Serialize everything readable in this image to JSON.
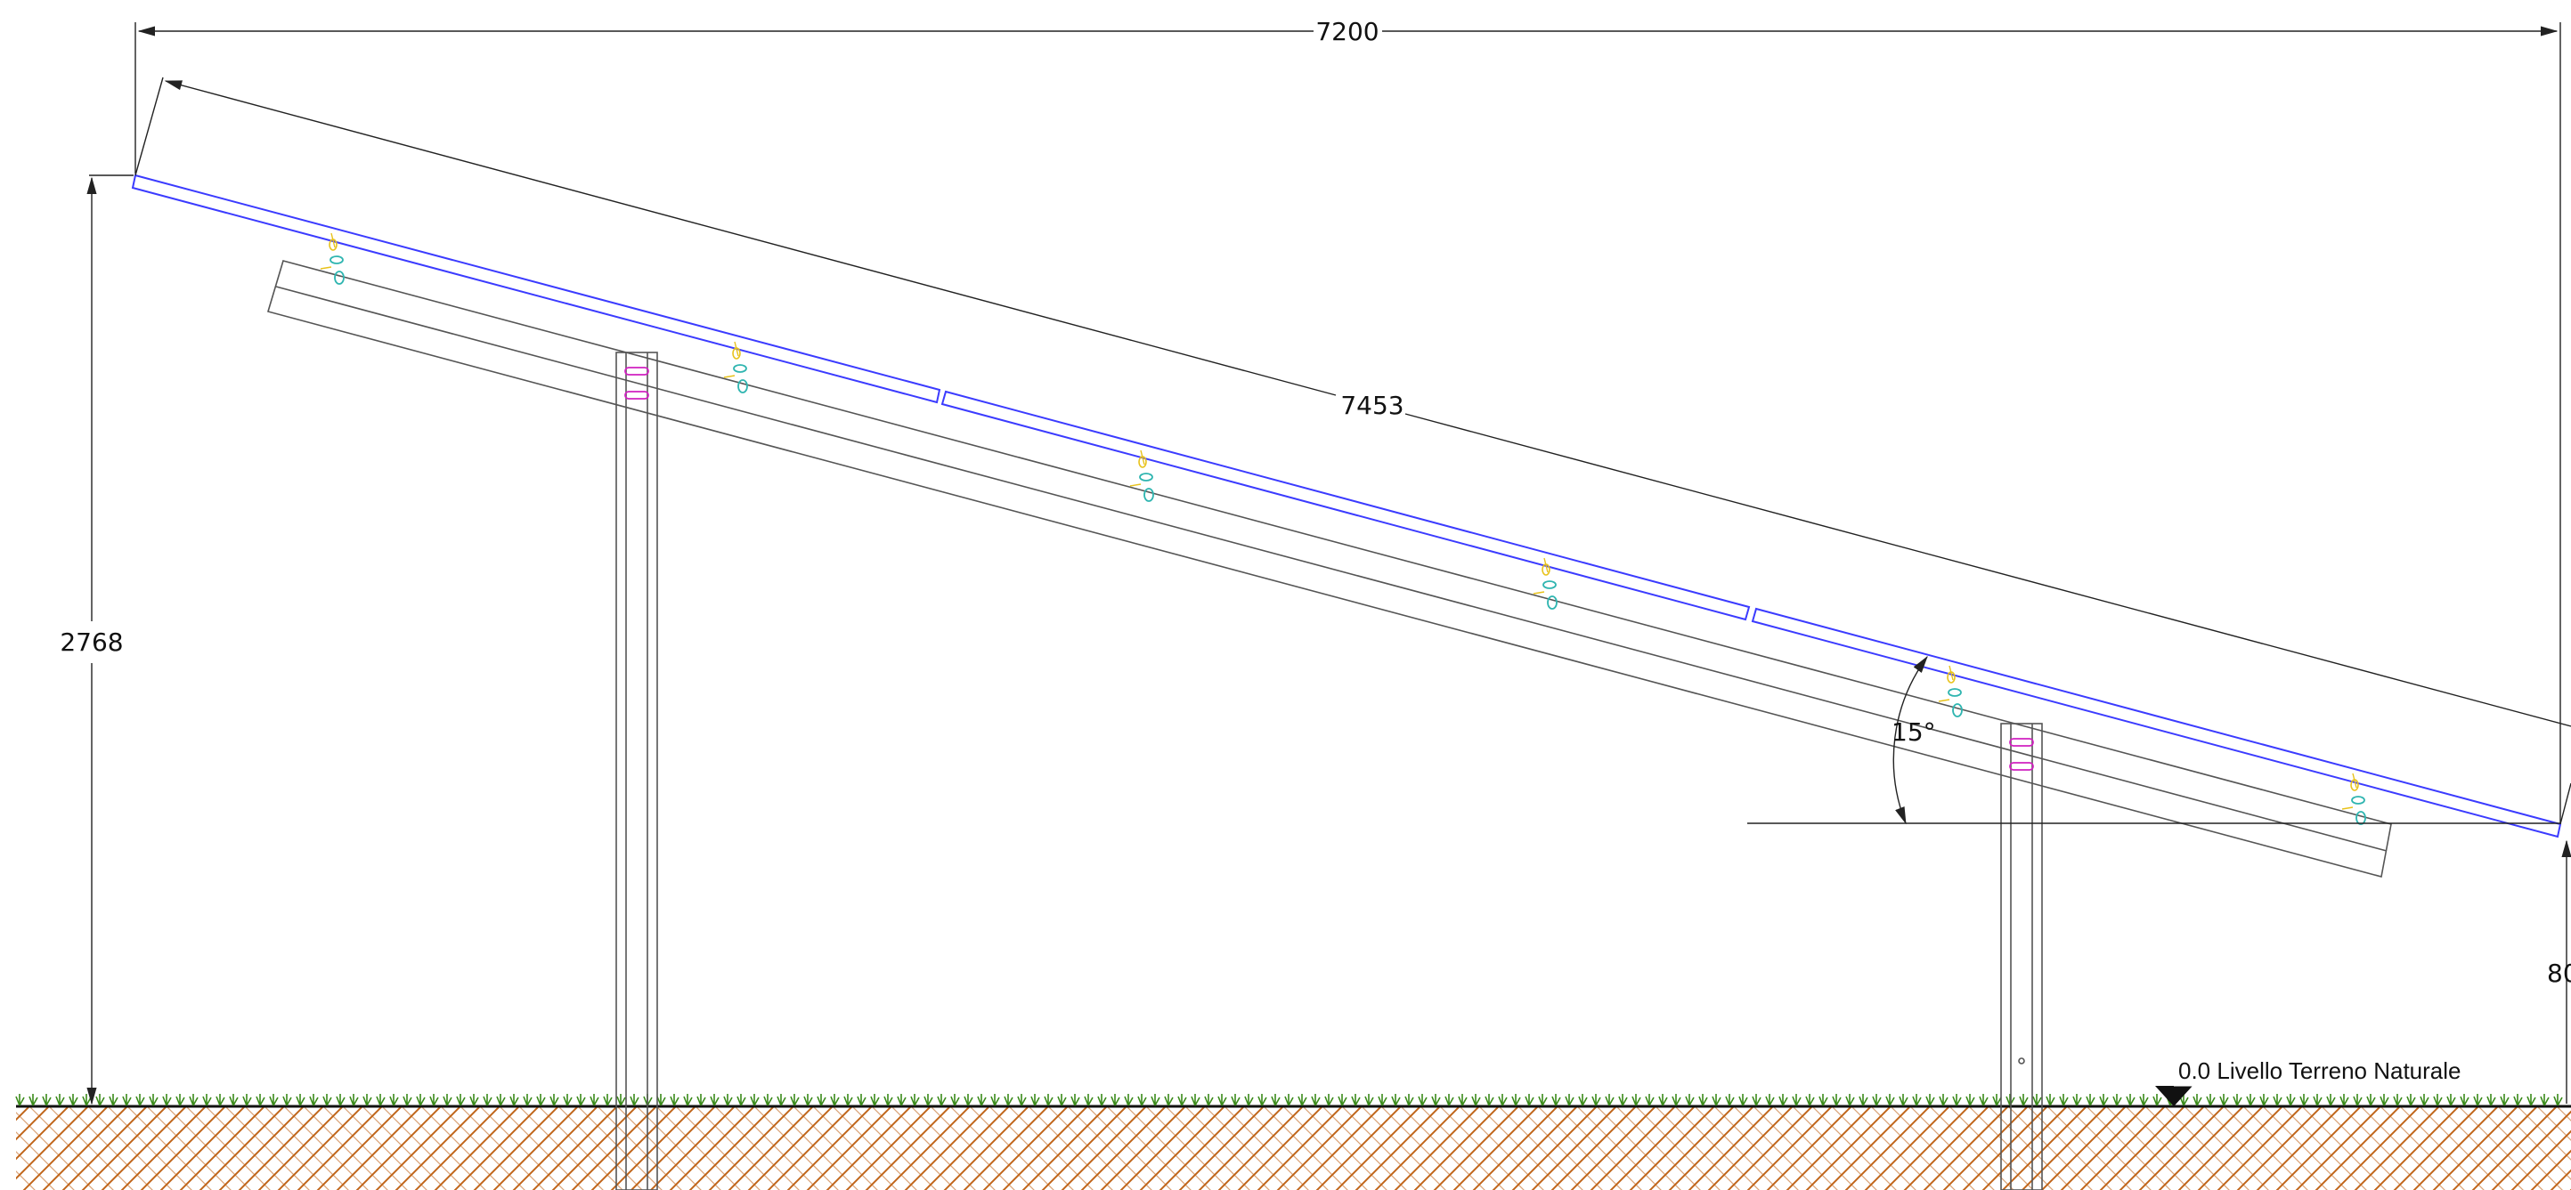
{
  "dimensions": {
    "width_total": "7200",
    "panel_length": "7453",
    "height_max": "2768",
    "height_min": "80",
    "tilt_angle": "15°"
  },
  "ground": {
    "label": "0.0 Livello Terreno Naturale"
  },
  "colors": {
    "panel_outline": "#3b3bff",
    "structure_line": "#555555",
    "dimension_line": "#222222",
    "grass": "#3a8a1a",
    "soil_hatch": "#c0651a",
    "bolt_yellow": "#e8c21a",
    "bolt_cyan": "#2fb5b0",
    "slot_magenta": "#d020c0"
  },
  "icons": {
    "ground_level_marker": "triangle-down-icon"
  }
}
